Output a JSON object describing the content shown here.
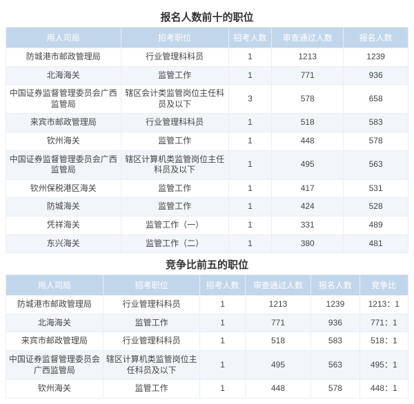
{
  "table1": {
    "title": "报名人数前十的职位",
    "col_widths": [
      "160",
      "150",
      "60",
      "100",
      "90"
    ],
    "header_bg": "#c2d6eb",
    "header_color": "#ffffff",
    "row_even_bg": "#f2f6fa",
    "row_odd_bg": "#ffffff",
    "border_color": "#e8eef5",
    "columns": [
      "用人司局",
      "招考职位",
      "招考人数",
      "审查通过人数",
      "报名人数"
    ],
    "rows": [
      [
        "防城港市邮政管理局",
        "行业管理科科员",
        "1",
        "1213",
        "1239"
      ],
      [
        "北海海关",
        "监管工作",
        "1",
        "771",
        "936"
      ],
      [
        "中国证券监督管理委员会广西监管局",
        "辖区会计类监管岗位主任科员及以下",
        "3",
        "578",
        "658"
      ],
      [
        "来宾市邮政管理局",
        "行业管理科科员",
        "1",
        "518",
        "583"
      ],
      [
        "钦州海关",
        "监管工作",
        "1",
        "448",
        "578"
      ],
      [
        "中国证券监督管理委员会广西监管局",
        "辖区计算机类监管岗位主任科员及以下",
        "1",
        "495",
        "563"
      ],
      [
        "钦州保税港区海关",
        "监管工作",
        "1",
        "417",
        "531"
      ],
      [
        "防城海关",
        "监管工作",
        "1",
        "424",
        "528"
      ],
      [
        "凭祥海关",
        "监管工作（一）",
        "1",
        "331",
        "489"
      ],
      [
        "东兴海关",
        "监管工作（二）",
        "1",
        "380",
        "481"
      ]
    ]
  },
  "table2": {
    "title": "竞争比前五的职位",
    "col_widths": [
      "140",
      "140",
      "65",
      "95",
      "70",
      "70"
    ],
    "header_bg": "#c2d6eb",
    "header_color": "#ffffff",
    "row_even_bg": "#f2f6fa",
    "row_odd_bg": "#ffffff",
    "border_color": "#e8eef5",
    "columns": [
      "用人司局",
      "招考职位",
      "招考人数",
      "审查通过人数",
      "报名人数",
      "竞争比"
    ],
    "rows": [
      [
        "防城港市邮政管理局",
        "行业管理科科员",
        "1",
        "1213",
        "1239",
        "1213：1"
      ],
      [
        "北海海关",
        "监管工作",
        "1",
        "771",
        "936",
        "771：1"
      ],
      [
        "来宾市邮政管理局",
        "行业管理科科员",
        "1",
        "518",
        "583",
        "518：1"
      ],
      [
        "中国证券监督管理委员会广西监管局",
        "辖区计算机类监管岗位主任科员及以下",
        "1",
        "495",
        "563",
        "495：1"
      ],
      [
        "钦州海关",
        "监管工作",
        "1",
        "448",
        "578",
        "448：1"
      ]
    ]
  }
}
